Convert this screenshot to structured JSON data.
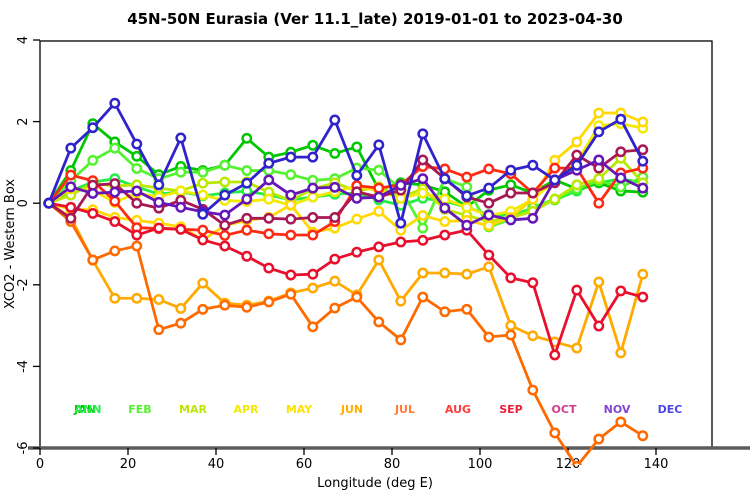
{
  "chart_data": {
    "type": "line",
    "title": "45N-50N Eurasia (Ver 11.1_late)   2019-01-01 to 2023-04-30",
    "xlabel": "Longitude (deg E)",
    "ylabel": "XCO2 - Western Box",
    "xlim": [
      0,
      152
    ],
    "ylim": [
      -6,
      4
    ],
    "xticks": [
      0,
      20,
      40,
      60,
      80,
      100,
      120,
      140
    ],
    "yticks": [
      4,
      2,
      0,
      -2,
      -4,
      -6
    ],
    "grid": false,
    "legend_position": "bottom-inside",
    "marker": "open-circle",
    "x": [
      2,
      7,
      12,
      17,
      22,
      27,
      32,
      37,
      42,
      47,
      52,
      57,
      62,
      67,
      72,
      77,
      82,
      87,
      92,
      97,
      102,
      107,
      112,
      117,
      122,
      127,
      132,
      137
    ],
    "series": [
      {
        "name": "ANN",
        "color": "#22ee44",
        "values": [
          0,
          0.3,
          0.52,
          0.6,
          0.4,
          0.22,
          0.28,
          0.18,
          0.25,
          0.3,
          0.2,
          0.08,
          0.15,
          0.22,
          0.25,
          0.08,
          -0.05,
          0.12,
          0.05,
          -0.1,
          -0.28,
          -0.3,
          -0.12,
          0.08,
          0.3,
          0.5,
          0.6,
          0.5
        ]
      },
      {
        "name": "JAN",
        "color": "#00c800",
        "values": [
          0,
          0.8,
          1.95,
          1.5,
          1.15,
          0.7,
          0.9,
          0.8,
          0.93,
          1.59,
          1.13,
          1.25,
          1.42,
          1.22,
          1.38,
          0.33,
          0.5,
          0.45,
          0.28,
          -0.09,
          0.32,
          0.45,
          0.25,
          0.57,
          0.35,
          0.5,
          0.3,
          0.27
        ]
      },
      {
        "name": "FEB",
        "color": "#55f230",
        "values": [
          0,
          0.55,
          1.05,
          1.35,
          0.85,
          0.6,
          0.76,
          0.76,
          0.93,
          0.8,
          0.8,
          0.7,
          0.56,
          0.6,
          0.86,
          0.81,
          0.35,
          -0.61,
          0.6,
          0.4,
          -0.58,
          -0.4,
          -0.1,
          0.1,
          0.35,
          0.55,
          0.4,
          0.64
        ]
      },
      {
        "name": "MAR",
        "color": "#bce800",
        "values": [
          0,
          0.2,
          0.49,
          0.42,
          0.45,
          0.37,
          0.3,
          0.49,
          0.52,
          0.52,
          0.27,
          0.07,
          0.35,
          0.5,
          0.3,
          0.4,
          0.15,
          0.35,
          -0.15,
          -0.3,
          -0.45,
          -0.35,
          -0.2,
          0.1,
          0.45,
          0.6,
          1.1,
          0.5
        ]
      },
      {
        "name": "APR",
        "color": "#f2ea00",
        "values": [
          0,
          0.35,
          0.32,
          0.02,
          0.25,
          0.15,
          0.3,
          0.2,
          0.07,
          0.04,
          0.1,
          -0.05,
          0.15,
          0.28,
          0.42,
          0.3,
          0.12,
          0.25,
          0.1,
          -0.1,
          -0.3,
          -0.2,
          0.1,
          0.55,
          1.0,
          1.9,
          1.95,
          1.84
        ]
      },
      {
        "name": "MAY",
        "color": "#ffd900",
        "values": [
          0,
          -0.15,
          -0.16,
          -0.35,
          -0.42,
          -0.49,
          -0.58,
          -0.9,
          -0.55,
          -0.42,
          -0.35,
          -0.04,
          -0.71,
          -0.61,
          -0.39,
          -0.2,
          -0.66,
          -0.3,
          -0.45,
          -0.42,
          -0.55,
          -0.35,
          0.1,
          1.05,
          1.5,
          2.21,
          2.21,
          1.99
        ]
      },
      {
        "name": "JUN",
        "color": "#ffaa00",
        "values": [
          0,
          -0.35,
          -1.4,
          -2.33,
          -2.33,
          -2.36,
          -2.58,
          -1.96,
          -2.45,
          -2.5,
          -2.4,
          -2.2,
          -2.08,
          -1.91,
          -2.25,
          -1.39,
          -2.4,
          -1.71,
          -1.71,
          -1.74,
          -1.56,
          -3.0,
          -3.25,
          -3.4,
          -3.55,
          -1.93,
          -3.67,
          -1.74
        ]
      },
      {
        "name": "JUL",
        "color": "#ff6a00",
        "values": [
          0,
          -0.45,
          -1.39,
          -1.17,
          -1.05,
          -3.1,
          -2.94,
          -2.6,
          -2.5,
          -2.55,
          -2.42,
          -2.23,
          -3.03,
          -2.57,
          -2.3,
          -2.91,
          -3.35,
          -2.3,
          -2.66,
          -2.6,
          -3.28,
          -3.23,
          -4.58,
          -5.63,
          -6.45,
          -5.78,
          -5.36,
          -5.7
        ]
      },
      {
        "name": "AUG",
        "color": "#ff2a12",
        "values": [
          0,
          0.69,
          0.55,
          0.05,
          -0.6,
          -0.62,
          -0.64,
          -0.66,
          -0.79,
          -0.66,
          -0.75,
          -0.78,
          -0.78,
          -0.45,
          0.43,
          0.37,
          0.45,
          0.9,
          0.84,
          0.64,
          0.84,
          0.72,
          0.25,
          0.86,
          0.86,
          0.0,
          0.74,
          0.86
        ]
      },
      {
        "name": "SEP",
        "color": "#e8102d",
        "values": [
          0,
          -0.1,
          -0.25,
          -0.45,
          -0.78,
          -0.61,
          -0.64,
          -0.9,
          -1.05,
          -1.3,
          -1.59,
          -1.76,
          -1.74,
          -1.37,
          -1.2,
          -1.07,
          -0.95,
          -0.91,
          -0.78,
          -0.66,
          -1.27,
          -1.83,
          -1.95,
          -3.72,
          -2.13,
          -3.01,
          -2.15,
          -2.3
        ]
      },
      {
        "name": "OCT",
        "color": "#a81855",
        "values": [
          0,
          -0.37,
          0.44,
          0.48,
          0.0,
          -0.12,
          0.07,
          -0.15,
          -0.54,
          -0.37,
          -0.37,
          -0.39,
          -0.35,
          -0.35,
          0.28,
          0.15,
          0.32,
          1.06,
          0.6,
          0.15,
          0.0,
          0.25,
          0.25,
          0.5,
          1.18,
          0.86,
          1.26,
          1.31
        ]
      },
      {
        "name": "NOV",
        "color": "#6616b6",
        "values": [
          0,
          0.4,
          0.24,
          0.27,
          0.3,
          0.02,
          -0.1,
          -0.21,
          -0.29,
          0.1,
          0.57,
          0.2,
          0.37,
          0.39,
          0.12,
          0.15,
          0.44,
          0.6,
          -0.12,
          -0.54,
          -0.29,
          -0.41,
          -0.37,
          0.57,
          0.81,
          1.06,
          0.62,
          0.37
        ]
      },
      {
        "name": "DEC",
        "color": "#3023cc",
        "values": [
          0,
          1.35,
          1.85,
          2.45,
          1.45,
          0.45,
          1.6,
          -0.27,
          0.2,
          0.49,
          0.98,
          1.13,
          1.13,
          2.04,
          0.68,
          1.43,
          -0.49,
          1.7,
          0.6,
          0.18,
          0.37,
          0.81,
          0.93,
          0.57,
          0.93,
          1.75,
          2.06,
          1.03
        ]
      }
    ],
    "legend": {
      "items": [
        {
          "label": "JAN",
          "color": "#00c000",
          "slot": 0,
          "dx": -2
        },
        {
          "label": "ANN",
          "color": "#22ee44",
          "slot": 0,
          "dx": 1
        },
        {
          "label": "FEB",
          "color": "#55f230",
          "slot": 1,
          "dx": 0
        },
        {
          "label": "MAR",
          "color": "#bce800",
          "slot": 2,
          "dx": 0
        },
        {
          "label": "APR",
          "color": "#f2ea00",
          "slot": 3,
          "dx": 0
        },
        {
          "label": "MAY",
          "color": "#ffe100",
          "slot": 4,
          "dx": 0
        },
        {
          "label": "JUN",
          "color": "#ffb000",
          "slot": 5,
          "dx": 0
        },
        {
          "label": "JUL",
          "color": "#ff7d3c",
          "slot": 6,
          "dx": 0
        },
        {
          "label": "AUG",
          "color": "#ff3c3c",
          "slot": 7,
          "dx": 0
        },
        {
          "label": "SEP",
          "color": "#e8203c",
          "slot": 8,
          "dx": 0
        },
        {
          "label": "OCT",
          "color": "#d23c8c",
          "slot": 9,
          "dx": 0
        },
        {
          "label": "NOV",
          "color": "#8246d2",
          "slot": 10,
          "dx": 0
        },
        {
          "label": "DEC",
          "color": "#5046e6",
          "slot": 11,
          "dx": 0
        }
      ]
    }
  }
}
